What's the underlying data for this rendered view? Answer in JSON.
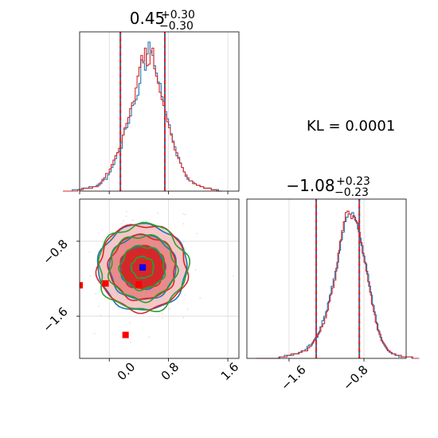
{
  "chart_data": [
    {
      "type": "histogram",
      "panel": "top-left marginal",
      "param": "x",
      "title_main": "0.45",
      "title_plus": "+0.30",
      "title_minus": "−0.30",
      "xlim": [
        -0.4,
        1.75
      ],
      "xticks": [
        -0.4,
        0.0,
        0.8,
        1.6
      ],
      "grid": true,
      "quantiles": [
        0.15,
        0.45,
        0.75
      ],
      "bin_width": 0.025,
      "series": [
        {
          "color": "#1f77b4",
          "values": [
            0,
            0,
            0,
            0,
            0,
            1,
            1,
            1,
            1,
            1,
            2,
            2,
            2,
            2,
            3,
            3,
            3,
            3,
            4,
            4,
            6,
            8,
            8,
            8,
            11,
            13,
            16,
            18,
            22,
            26,
            27,
            29,
            38,
            42,
            43,
            46,
            51,
            58,
            59,
            62,
            65,
            73,
            89,
            87,
            82,
            93,
            101,
            95,
            92,
            85,
            80,
            74,
            73,
            64,
            61,
            54,
            49,
            45,
            39,
            34,
            30,
            24,
            23,
            19,
            16,
            13,
            10,
            8,
            7,
            7,
            6,
            5,
            4,
            4,
            3,
            3,
            2,
            2,
            2,
            2,
            1,
            1,
            1,
            1,
            0,
            0
          ]
        },
        {
          "color": "#d62728",
          "values": [
            0,
            0,
            0,
            0,
            0,
            0,
            0,
            0,
            1,
            1,
            1,
            2,
            2,
            2,
            2,
            2,
            3,
            3,
            3,
            5,
            5,
            7,
            9,
            12,
            12,
            15,
            18,
            21,
            24,
            26,
            29,
            33,
            38,
            43,
            46,
            50,
            56,
            60,
            61,
            70,
            78,
            84,
            92,
            88,
            97,
            85,
            86,
            94,
            97,
            83,
            78,
            73,
            67,
            62,
            58,
            52,
            47,
            43,
            38,
            33,
            28,
            26,
            22,
            19,
            16,
            13,
            11,
            9,
            7,
            7,
            5,
            5,
            4,
            4,
            3,
            3,
            2,
            2,
            2,
            2,
            1,
            1,
            1,
            0,
            0,
            0
          ]
        }
      ],
      "ymax": 108
    },
    {
      "type": "histogram",
      "panel": "bottom-right marginal",
      "param": "y",
      "title_main": "−1.08",
      "title_plus": "+0.23",
      "title_minus": "−0.23",
      "xlim": [
        -2.05,
        -0.35
      ],
      "xticks": [
        -1.6,
        -0.8
      ],
      "grid": true,
      "quantiles": [
        -1.31,
        -1.08,
        -0.85
      ],
      "bin_width": 0.02,
      "series": [
        {
          "color": "#1f77b4",
          "values": [
            0,
            0,
            0,
            0,
            0,
            0,
            0,
            0,
            0,
            0,
            0,
            0,
            1,
            1,
            1,
            2,
            2,
            2,
            2,
            2,
            3,
            3,
            3,
            4,
            5,
            5,
            6,
            8,
            9,
            9,
            11,
            13,
            14,
            17,
            21,
            25,
            28,
            31,
            37,
            42,
            48,
            53,
            58,
            64,
            72,
            79,
            84,
            91,
            94,
            96,
            96,
            97,
            94,
            91,
            86,
            80,
            75,
            68,
            63,
            56,
            48,
            42,
            35,
            29,
            23,
            18,
            14,
            11,
            9,
            7,
            5,
            4,
            3,
            3,
            2,
            2,
            1,
            1,
            1,
            1,
            1,
            1,
            1,
            0,
            0,
            0,
            0
          ]
        },
        {
          "color": "#d62728",
          "values": [
            0,
            0,
            0,
            0,
            0,
            0,
            0,
            0,
            0,
            0,
            0,
            0,
            1,
            1,
            1,
            1,
            2,
            2,
            3,
            3,
            3,
            3,
            4,
            4,
            5,
            5,
            5,
            7,
            8,
            10,
            12,
            14,
            16,
            18,
            21,
            23,
            27,
            32,
            38,
            43,
            47,
            52,
            60,
            70,
            78,
            85,
            91,
            97,
            98,
            96,
            93,
            95,
            92,
            90,
            84,
            77,
            70,
            64,
            58,
            51,
            44,
            36,
            31,
            24,
            19,
            16,
            12,
            10,
            8,
            6,
            5,
            4,
            3,
            3,
            2,
            2,
            2,
            1,
            1,
            1,
            1,
            1,
            1,
            0,
            0,
            0
          ]
        }
      ],
      "ymax": 106
    },
    {
      "type": "contour",
      "panel": "bottom-left joint",
      "xlim": [
        -0.4,
        1.75
      ],
      "ylim": [
        -2.05,
        -0.35
      ],
      "xticks": [
        0.0,
        0.8,
        1.6
      ],
      "yticks": [
        -0.8,
        -1.6
      ],
      "grid": true,
      "center": [
        0.45,
        -1.08
      ],
      "sigma": [
        0.3,
        0.23
      ],
      "levels": [
        0.5,
        1.0,
        1.5,
        2.0
      ],
      "contour_colors": [
        "#1f77b4",
        "#d62728",
        "#2ca02c"
      ],
      "fill_colors": [
        "#f4c7c8",
        "#e98a8b",
        "#d62728"
      ],
      "markers": [
        {
          "color": "#0000ff",
          "x": 0.45,
          "y": -1.08
        },
        {
          "color": "#ff0000",
          "x": 0.4,
          "y": -1.26
        },
        {
          "color": "#ff0000",
          "x": 0.22,
          "y": -1.8
        },
        {
          "color": "#ff0000",
          "x": -0.05,
          "y": -1.25
        },
        {
          "color": "#ff0000",
          "x": -0.4,
          "y": -1.27
        }
      ]
    }
  ],
  "annotation": {
    "kl_text": "KL = 0.0001"
  },
  "tick_labels": {
    "joint_x": [
      "0.0",
      "0.8",
      "1.6"
    ],
    "joint_y": [
      "−0.8",
      "−1.6"
    ],
    "hist_y_x": [
      "−1.6",
      "−0.8"
    ]
  }
}
